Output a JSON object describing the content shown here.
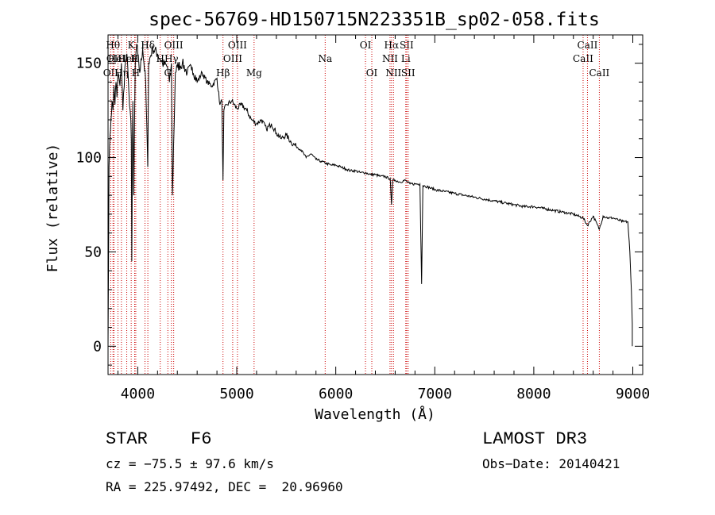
{
  "chart_data": {
    "type": "line",
    "title": "spec-56769-HD150715N223351B_sp02-058.fits",
    "xlabel": "Wavelength (Å)",
    "ylabel": "Flux (relative)",
    "xlim": [
      3700,
      9100
    ],
    "ylim": [
      -15,
      165
    ],
    "xticks": [
      4000,
      5000,
      6000,
      7000,
      8000,
      9000
    ],
    "yticks": [
      0,
      50,
      100,
      150
    ],
    "series": [
      {
        "name": "flux",
        "x": [
          3700,
          3710,
          3720,
          3730,
          3740,
          3750,
          3760,
          3770,
          3780,
          3790,
          3800,
          3820,
          3835,
          3850,
          3870,
          3890,
          3910,
          3930,
          3935,
          3940,
          3950,
          3960,
          3968,
          3975,
          3990,
          4000,
          4020,
          4050,
          4080,
          4101,
          4110,
          4150,
          4200,
          4250,
          4300,
          4320,
          4340,
          4350,
          4380,
          4400,
          4450,
          4500,
          4550,
          4600,
          4650,
          4700,
          4750,
          4800,
          4830,
          4850,
          4861,
          4870,
          4900,
          4950,
          5000,
          5050,
          5100,
          5150,
          5200,
          5250,
          5300,
          5350,
          5400,
          5450,
          5500,
          5550,
          5600,
          5650,
          5700,
          5750,
          5800,
          5850,
          5900,
          5950,
          6000,
          6050,
          6100,
          6150,
          6200,
          6250,
          6300,
          6350,
          6400,
          6450,
          6500,
          6530,
          6550,
          6563,
          6575,
          6600,
          6650,
          6700,
          6750,
          6800,
          6850,
          6867,
          6880,
          6900,
          6950,
          7000,
          7100,
          7200,
          7300,
          7400,
          7500,
          7600,
          7700,
          7800,
          7900,
          8000,
          8100,
          8200,
          8300,
          8400,
          8498,
          8542,
          8600,
          8662,
          8700,
          8750,
          8800,
          8850,
          8900,
          8950,
          8970,
          8985,
          8995
        ],
        "y": [
          0,
          95,
          112,
          120,
          130,
          125,
          138,
          128,
          140,
          132,
          145,
          138,
          150,
          125,
          148,
          155,
          135,
          120,
          110,
          45,
          130,
          80,
          120,
          150,
          160,
          155,
          145,
          158,
          140,
          95,
          150,
          158,
          155,
          150,
          148,
          140,
          150,
          80,
          145,
          148,
          150,
          145,
          148,
          140,
          145,
          140,
          138,
          142,
          128,
          130,
          88,
          125,
          128,
          130,
          126,
          128,
          125,
          120,
          118,
          120,
          115,
          118,
          113,
          110,
          112,
          108,
          106,
          104,
          100,
          102,
          99,
          98,
          97,
          96,
          96,
          95,
          94,
          93,
          93,
          92,
          92,
          91,
          91,
          90,
          90,
          89,
          89,
          75,
          88,
          88,
          87,
          88,
          86,
          86,
          86,
          33,
          85,
          85,
          84,
          83,
          82,
          81,
          80,
          79,
          78,
          77,
          76,
          75,
          74,
          74,
          73,
          72,
          71,
          70,
          68,
          64,
          69,
          62,
          69,
          68,
          68,
          67,
          66,
          66,
          50,
          30,
          12
        ]
      }
    ],
    "lines": [
      {
        "wl": 3727,
        "label": "OII",
        "row": 2
      },
      {
        "wl": 3750,
        "label": "Hθ",
        "row": 0
      },
      {
        "wl": 3760,
        "label": "OII",
        "row": 1
      },
      {
        "wl": 3800,
        "label": "Heli",
        "row": 1
      },
      {
        "wl": 3835,
        "label": "Hη",
        "row": 2
      },
      {
        "wl": 3889,
        "label": "HeI",
        "row": 1
      },
      {
        "wl": 3934,
        "label": "K",
        "row": 0
      },
      {
        "wl": 3969,
        "label": "H",
        "row": 1
      },
      {
        "wl": 3980,
        "label": "H",
        "row": 2
      },
      {
        "wl": 4073,
        "label": "H",
        "row": 0
      },
      {
        "wl": 4102,
        "label": "Hδ",
        "row": 0
      },
      {
        "wl": 4227,
        "label": "H",
        "row": 1
      },
      {
        "wl": 4304,
        "label": "G",
        "row": 2
      },
      {
        "wl": 4340,
        "label": "Hγ",
        "row": 1
      },
      {
        "wl": 4363,
        "label": "OIII",
        "row": 0
      },
      {
        "wl": 4861,
        "label": "Hβ",
        "row": 2
      },
      {
        "wl": 4959,
        "label": "OIII",
        "row": 1
      },
      {
        "wl": 5007,
        "label": "OIII",
        "row": 0
      },
      {
        "wl": 5175,
        "label": "Mg",
        "row": 2
      },
      {
        "wl": 5893,
        "label": "Na",
        "row": 1
      },
      {
        "wl": 6300,
        "label": "OI",
        "row": 0
      },
      {
        "wl": 6364,
        "label": "OI",
        "row": 2
      },
      {
        "wl": 6548,
        "label": "NII",
        "row": 1
      },
      {
        "wl": 6563,
        "label": "Hα",
        "row": 0
      },
      {
        "wl": 6583,
        "label": "NII",
        "row": 2
      },
      {
        "wl": 6707,
        "label": "Li",
        "row": 1
      },
      {
        "wl": 6716,
        "label": "SII",
        "row": 0
      },
      {
        "wl": 6731,
        "label": "SII",
        "row": 2
      },
      {
        "wl": 8498,
        "label": "CaII",
        "row": 1
      },
      {
        "wl": 8542,
        "label": "CaII",
        "row": 0
      },
      {
        "wl": 8662,
        "label": "CaII",
        "row": 2
      }
    ]
  },
  "info": {
    "object_class": "STAR",
    "subclass": "F6",
    "survey": "LAMOST DR3",
    "cz": "cz = −75.5 ± 97.6 km/s",
    "obs_date": "Obs−Date: 20140421",
    "coords": "RA = 225.97492, DEC =  20.96960"
  }
}
